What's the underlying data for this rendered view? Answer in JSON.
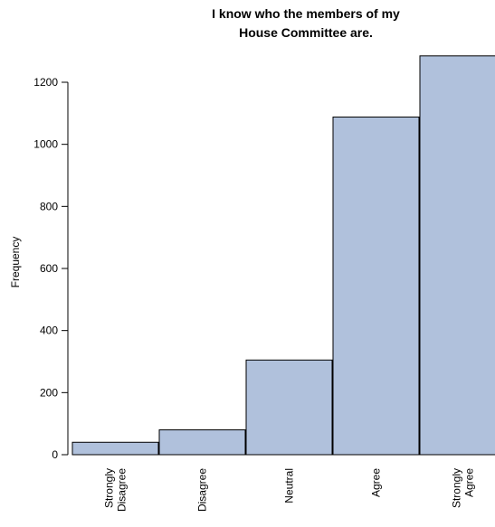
{
  "chart_data": {
    "type": "bar",
    "title_lines": [
      "I know who the members of my",
      "House Committee are."
    ],
    "xlabel": "",
    "ylabel": "Frequency",
    "categories": [
      [
        "Strongly",
        "Disagree"
      ],
      [
        "Disagree"
      ],
      [
        "Neutral"
      ],
      [
        "Agree"
      ],
      [
        "Strongly",
        "Agree"
      ]
    ],
    "values": [
      40,
      80,
      305,
      1088,
      1285
    ],
    "ylim": [
      0,
      1300
    ],
    "yticks": [
      0,
      200,
      400,
      600,
      800,
      1000,
      1200
    ],
    "bar_color": "#b0c1dc",
    "grid": false,
    "legend": "none"
  }
}
